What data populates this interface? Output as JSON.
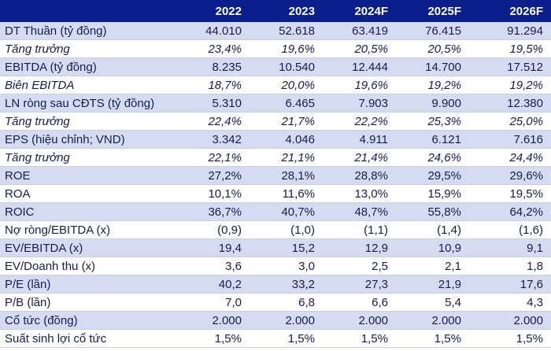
{
  "table": {
    "columns": [
      "2022",
      "2023",
      "2024F",
      "2025F",
      "2026F"
    ],
    "rows": [
      {
        "label": "DT Thuần (tỷ đồng)",
        "values": [
          "44.010",
          "52.618",
          "63.419",
          "76.415",
          "91.294"
        ],
        "italic": false,
        "shaded": true
      },
      {
        "label": "Tăng trưởng",
        "values": [
          "23,4%",
          "19,6%",
          "20,5%",
          "20,5%",
          "19,5%"
        ],
        "italic": true,
        "shaded": false
      },
      {
        "label": "EBITDA (tỷ đồng)",
        "values": [
          "8.235",
          "10.540",
          "12.444",
          "14.700",
          "17.512"
        ],
        "italic": false,
        "shaded": true
      },
      {
        "label": "Biên EBITDA",
        "values": [
          "18,7%",
          "20,0%",
          "19,6%",
          "19,2%",
          "19,2%"
        ],
        "italic": true,
        "shaded": false
      },
      {
        "label": "LN ròng sau CĐTS (tỷ đồng)",
        "values": [
          "5.310",
          "6.465",
          "7.903",
          "9.900",
          "12.380"
        ],
        "italic": false,
        "shaded": true
      },
      {
        "label": "Tăng trưởng",
        "values": [
          "22,4%",
          "21,7%",
          "22,2%",
          "25,3%",
          "25,0%"
        ],
        "italic": true,
        "shaded": false
      },
      {
        "label": "EPS (hiệu chỉnh; VND)",
        "values": [
          "3.342",
          "4.046",
          "4.911",
          "6.121",
          "7.616"
        ],
        "italic": false,
        "shaded": true
      },
      {
        "label": "Tăng trưởng",
        "values": [
          "22,1%",
          "21,1%",
          "21,4%",
          "24,6%",
          "24,4%"
        ],
        "italic": true,
        "shaded": false
      },
      {
        "label": "ROE",
        "values": [
          "27,2%",
          "28,1%",
          "28,8%",
          "29,5%",
          "29,6%"
        ],
        "italic": false,
        "shaded": true
      },
      {
        "label": "ROA",
        "values": [
          "10,1%",
          "11,6%",
          "13,0%",
          "15,9%",
          "19,5%"
        ],
        "italic": false,
        "shaded": false
      },
      {
        "label": "ROIC",
        "values": [
          "36,7%",
          "40,7%",
          "48,7%",
          "55,8%",
          "64,2%"
        ],
        "italic": false,
        "shaded": true
      },
      {
        "label": "Nợ ròng/EBITDA (x)",
        "values": [
          "(0,9)",
          "(1,0)",
          "(1,1)",
          "(1,4)",
          "(1,6)"
        ],
        "italic": false,
        "shaded": false
      },
      {
        "label": "EV/EBITDA (x)",
        "values": [
          "19,4",
          "15,2",
          "12,9",
          "10,9",
          "9,1"
        ],
        "italic": false,
        "shaded": true
      },
      {
        "label": "EV/Doanh thu (x)",
        "values": [
          "3,6",
          "3,0",
          "2,5",
          "2,1",
          "1,8"
        ],
        "italic": false,
        "shaded": false
      },
      {
        "label": "P/E (lần)",
        "values": [
          "40,2",
          "33,2",
          "27,3",
          "21,9",
          "17,6"
        ],
        "italic": false,
        "shaded": true
      },
      {
        "label": "P/B (lần)",
        "values": [
          "7,0",
          "6,8",
          "6,6",
          "5,4",
          "4,3"
        ],
        "italic": false,
        "shaded": false
      },
      {
        "label": "Cổ tức (đồng)",
        "values": [
          "2.000",
          "2.000",
          "2.000",
          "2.000",
          "2.000"
        ],
        "italic": false,
        "shaded": true
      },
      {
        "label": "Suất sinh lợi cổ tức",
        "values": [
          "1,5%",
          "1,5%",
          "1,5%",
          "1,5%",
          "1,5%"
        ],
        "italic": false,
        "shaded": false
      }
    ]
  },
  "colors": {
    "header_bg": "#0b1f8c",
    "shaded_row": "#d5dcf2",
    "text": "#161b50"
  }
}
